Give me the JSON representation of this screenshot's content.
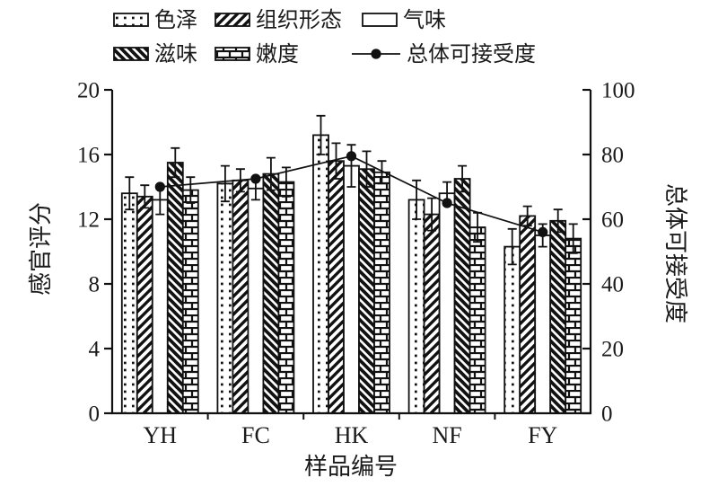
{
  "chart_data": {
    "type": "bar",
    "title": "",
    "categories": [
      "YH",
      "FC",
      "HK",
      "NF",
      "FY"
    ],
    "bar_series": [
      {
        "name": "色泽",
        "pattern": "dots",
        "values": [
          13.6,
          14.2,
          17.2,
          13.2,
          10.3
        ],
        "errors": [
          1.0,
          1.1,
          1.2,
          1.2,
          1.1
        ]
      },
      {
        "name": "组织形态",
        "pattern": "diag-up",
        "values": [
          13.4,
          14.4,
          15.6,
          12.3,
          12.2
        ],
        "errors": [
          0.7,
          0.7,
          1.1,
          1.0,
          0.6
        ]
      },
      {
        "name": "气味",
        "pattern": "plain",
        "values": [
          13.2,
          13.9,
          15.3,
          13.6,
          11.0
        ],
        "errors": [
          0.9,
          0.7,
          1.3,
          0.7,
          0.7
        ]
      },
      {
        "name": "滋味",
        "pattern": "diag-down",
        "values": [
          15.5,
          14.8,
          15.1,
          14.5,
          11.9
        ],
        "errors": [
          0.9,
          1.0,
          1.1,
          0.8,
          0.7
        ]
      },
      {
        "name": "嫩度",
        "pattern": "brick",
        "values": [
          13.8,
          14.3,
          14.9,
          11.5,
          10.8
        ],
        "errors": [
          0.8,
          0.9,
          0.7,
          0.9,
          0.9
        ]
      }
    ],
    "line_series": {
      "name": "总体可接受度",
      "axis": "right",
      "marker": "filled-circle",
      "values": [
        70,
        72.5,
        79.5,
        65,
        56
      ]
    },
    "left_axis": {
      "label": "感官评分",
      "min": 0,
      "max": 20,
      "ticks": [
        0,
        4,
        8,
        12,
        16,
        20
      ]
    },
    "right_axis": {
      "label": "总体可接受度",
      "min": 0,
      "max": 100,
      "ticks": [
        0,
        20,
        40,
        60,
        80,
        100
      ]
    },
    "x_axis": {
      "label": "样品编号"
    },
    "legend_position": "top",
    "grid": "off",
    "colors": {
      "ink": "#111111",
      "background": "#ffffff"
    }
  }
}
